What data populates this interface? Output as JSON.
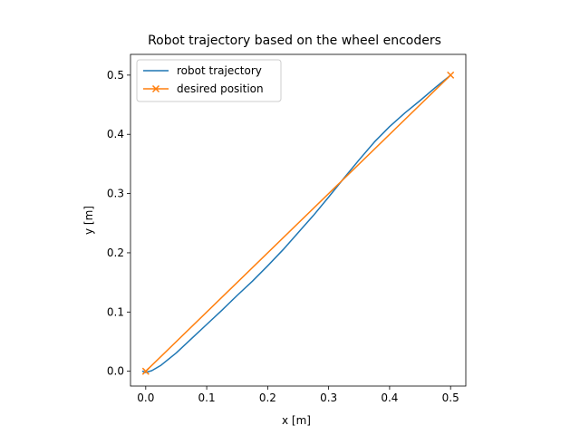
{
  "chart_data": {
    "type": "line",
    "title": "Robot trajectory based on the wheel encoders",
    "xlabel": "x [m]",
    "ylabel": "y [m]",
    "xlim": [
      -0.025,
      0.525
    ],
    "ylim": [
      -0.025,
      0.535
    ],
    "xticks": [
      0.0,
      0.1,
      0.2,
      0.3,
      0.4,
      0.5
    ],
    "xtick_labels": [
      "0.0",
      "0.1",
      "0.2",
      "0.3",
      "0.4",
      "0.5"
    ],
    "yticks": [
      0.0,
      0.1,
      0.2,
      0.3,
      0.4,
      0.5
    ],
    "ytick_labels": [
      "0.0",
      "0.1",
      "0.2",
      "0.3",
      "0.4",
      "0.5"
    ],
    "grid": false,
    "legend_position": "top-left",
    "series": [
      {
        "name": "robot trajectory",
        "color": "#1f77b4",
        "marker": "none",
        "x": [
          -0.005,
          0.0,
          0.01,
          0.025,
          0.05,
          0.075,
          0.1,
          0.125,
          0.15,
          0.175,
          0.2,
          0.225,
          0.25,
          0.275,
          0.3,
          0.325,
          0.35,
          0.375,
          0.4,
          0.425,
          0.45,
          0.475,
          0.5
        ],
        "y": [
          0.0,
          -0.002,
          0.001,
          0.01,
          0.031,
          0.055,
          0.079,
          0.103,
          0.128,
          0.152,
          0.178,
          0.205,
          0.234,
          0.263,
          0.294,
          0.326,
          0.357,
          0.387,
          0.413,
          0.436,
          0.457,
          0.479,
          0.5
        ]
      },
      {
        "name": "desired position",
        "color": "#ff7f0e",
        "marker": "x",
        "x": [
          0.0,
          0.5
        ],
        "y": [
          0.0,
          0.5
        ]
      }
    ]
  }
}
